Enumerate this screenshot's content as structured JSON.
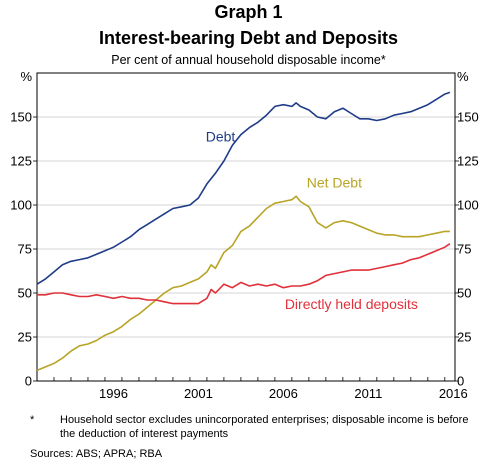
{
  "header": {
    "title": "Graph 1",
    "subtitle": "Interest-bearing Debt and Deposits",
    "caption": "Per cent of annual household disposable income*"
  },
  "footer": {
    "note_marker": "*",
    "note_text": "Household sector excludes unincorporated enterprises; disposable income is before the deduction of interest payments",
    "sources": "Sources:  ABS; APRA; RBA"
  },
  "chart_data": {
    "type": "line",
    "title": "Interest-bearing Debt and Deposits",
    "ylabel_left": "%",
    "ylabel_right": "%",
    "ylim": [
      0,
      175
    ],
    "yticks": [
      0,
      25,
      50,
      75,
      100,
      125,
      150
    ],
    "xlim": [
      1992.0,
      2016.6
    ],
    "xticks": [
      1996,
      2001,
      2006,
      2011,
      2016
    ],
    "colors": {
      "debt": "#1f3c88",
      "net_debt": "#b8a426",
      "deposits": "#e0303a"
    },
    "series": [
      {
        "name": "Debt",
        "color": "#1f3c88",
        "x": [
          1992.0,
          1992.5,
          1993.0,
          1993.5,
          1994.0,
          1994.5,
          1995.0,
          1995.5,
          1996.0,
          1996.5,
          1997.0,
          1997.5,
          1998.0,
          1998.5,
          1999.0,
          1999.5,
          2000.0,
          2000.5,
          2001.0,
          2001.5,
          2002.0,
          2002.5,
          2003.0,
          2003.5,
          2004.0,
          2004.5,
          2005.0,
          2005.5,
          2006.0,
          2006.5,
          2007.0,
          2007.25,
          2007.5,
          2008.0,
          2008.5,
          2009.0,
          2009.5,
          2010.0,
          2010.5,
          2011.0,
          2011.5,
          2012.0,
          2012.5,
          2013.0,
          2013.5,
          2014.0,
          2014.5,
          2015.0,
          2015.5,
          2016.0,
          2016.3
        ],
        "values": [
          55,
          58,
          62,
          66,
          68,
          69,
          70,
          72,
          74,
          76,
          79,
          82,
          86,
          89,
          92,
          95,
          98,
          99,
          100,
          104,
          112,
          118,
          125,
          134,
          140,
          144,
          147,
          151,
          156,
          157,
          156,
          158,
          156,
          154,
          150,
          149,
          153,
          155,
          152,
          149,
          149,
          148,
          149,
          151,
          152,
          153,
          155,
          157,
          160,
          163,
          164
        ]
      },
      {
        "name": "Net Debt",
        "color": "#b8a426",
        "x": [
          1992.0,
          1992.5,
          1993.0,
          1993.5,
          1994.0,
          1994.5,
          1995.0,
          1995.5,
          1996.0,
          1996.5,
          1997.0,
          1997.5,
          1998.0,
          1998.5,
          1999.0,
          1999.5,
          2000.0,
          2000.5,
          2001.0,
          2001.5,
          2002.0,
          2002.25,
          2002.5,
          2003.0,
          2003.5,
          2004.0,
          2004.5,
          2005.0,
          2005.5,
          2006.0,
          2006.5,
          2007.0,
          2007.25,
          2007.5,
          2008.0,
          2008.5,
          2009.0,
          2009.5,
          2010.0,
          2010.5,
          2011.0,
          2011.5,
          2012.0,
          2012.5,
          2013.0,
          2013.5,
          2014.0,
          2014.5,
          2015.0,
          2015.5,
          2016.0,
          2016.3
        ],
        "values": [
          6,
          8,
          10,
          13,
          17,
          20,
          21,
          23,
          26,
          28,
          31,
          35,
          38,
          42,
          46,
          50,
          53,
          54,
          56,
          58,
          62,
          66,
          64,
          73,
          77,
          85,
          88,
          93,
          98,
          101,
          102,
          103,
          105,
          102,
          99,
          90,
          87,
          90,
          91,
          90,
          88,
          86,
          84,
          83,
          83,
          82,
          82,
          82,
          83,
          84,
          85,
          85
        ]
      },
      {
        "name": "Directly held deposits",
        "color": "#e0303a",
        "x": [
          1992.0,
          1992.5,
          1993.0,
          1993.5,
          1994.0,
          1994.5,
          1995.0,
          1995.5,
          1996.0,
          1996.5,
          1997.0,
          1997.5,
          1998.0,
          1998.5,
          1999.0,
          1999.5,
          2000.0,
          2000.5,
          2001.0,
          2001.5,
          2002.0,
          2002.25,
          2002.5,
          2003.0,
          2003.5,
          2004.0,
          2004.5,
          2005.0,
          2005.5,
          2006.0,
          2006.5,
          2007.0,
          2007.5,
          2008.0,
          2008.5,
          2009.0,
          2009.5,
          2010.0,
          2010.5,
          2011.0,
          2011.5,
          2012.0,
          2012.5,
          2013.0,
          2013.5,
          2014.0,
          2014.5,
          2015.0,
          2015.5,
          2016.0,
          2016.3
        ],
        "values": [
          49,
          49,
          50,
          50,
          49,
          48,
          48,
          49,
          48,
          47,
          48,
          47,
          47,
          46,
          46,
          45,
          44,
          44,
          44,
          44,
          47,
          52,
          50,
          55,
          53,
          56,
          54,
          55,
          54,
          55,
          53,
          54,
          54,
          55,
          57,
          60,
          61,
          62,
          63,
          63,
          63,
          64,
          65,
          66,
          67,
          69,
          70,
          72,
          74,
          76,
          78
        ]
      }
    ],
    "annotations": [
      {
        "label": "Debt",
        "color": "#1f3c88",
        "x": 2002.8,
        "y": 136
      },
      {
        "label": "Net Debt",
        "color": "#b8a426",
        "x": 2009.5,
        "y": 110
      },
      {
        "label": "Directly held deposits",
        "color": "#e0303a",
        "x": 2010.5,
        "y": 41
      }
    ]
  }
}
